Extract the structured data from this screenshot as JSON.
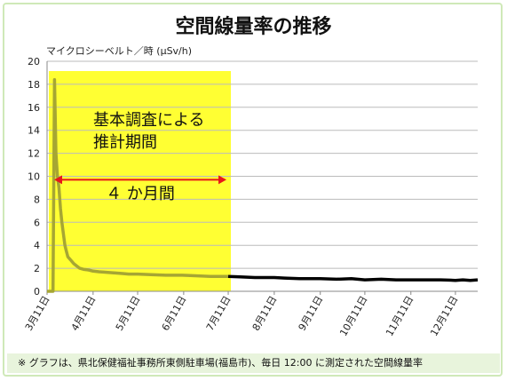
{
  "title": "空間線量率の推移",
  "footnote": "※ グラフは、県北保健福祉事務所東側駐車場(福島市)、毎日 12:00 に測定された空間線量率",
  "chart_data": {
    "type": "line",
    "title": "空間線量率の推移",
    "ylabel": "マイクロシーベルト／時 (μSv/h)",
    "xlabel": "",
    "ylim": [
      0,
      20
    ],
    "yticks": [
      0,
      2,
      4,
      6,
      8,
      10,
      12,
      14,
      16,
      18,
      20
    ],
    "grid": true,
    "x_tick_labels": [
      "3月11日",
      "4月11日",
      "5月11日",
      "6月11日",
      "7月11日",
      "8月11日",
      "9月11日",
      "10月11日",
      "11月11日",
      "12月11日"
    ],
    "x_range_days": [
      0,
      290
    ],
    "series": [
      {
        "x": [
          0,
          1,
          2,
          3,
          4,
          5,
          6,
          7,
          8,
          9,
          10,
          11,
          12,
          13,
          14,
          16,
          18,
          20,
          22,
          25,
          28,
          31,
          35,
          40,
          45,
          50,
          55,
          61,
          70,
          80,
          91,
          100,
          110,
          122,
          130,
          140,
          153,
          160,
          170,
          184,
          195,
          205,
          214,
          225,
          235,
          245,
          255,
          265,
          275,
          280,
          285,
          290
        ],
        "values": [
          0,
          0,
          0,
          0,
          0,
          18.4,
          12,
          10,
          9,
          7.2,
          6,
          5,
          4,
          3.5,
          3.0,
          2.7,
          2.4,
          2.2,
          2.0,
          1.9,
          1.85,
          1.75,
          1.7,
          1.65,
          1.6,
          1.55,
          1.5,
          1.5,
          1.45,
          1.4,
          1.4,
          1.35,
          1.3,
          1.3,
          1.25,
          1.2,
          1.2,
          1.15,
          1.1,
          1.1,
          1.05,
          1.1,
          1.0,
          1.05,
          1.0,
          1.0,
          1.0,
          1.0,
          0.95,
          1.0,
          0.95,
          1.0
        ]
      }
    ],
    "highlight": {
      "x_range": [
        0,
        122
      ],
      "color": "#ffff33",
      "label": "基本調査による\n推計期間",
      "label_line1": "基本調査による",
      "label_line2": "推計期間",
      "arrow_label": "４ か月間",
      "arrow_y": 9.7,
      "arrow_color": "#e8171a"
    },
    "colors": {
      "highlight_line": "#a6a633",
      "normal_line": "#000000",
      "grid": "#bbbbbb"
    }
  }
}
